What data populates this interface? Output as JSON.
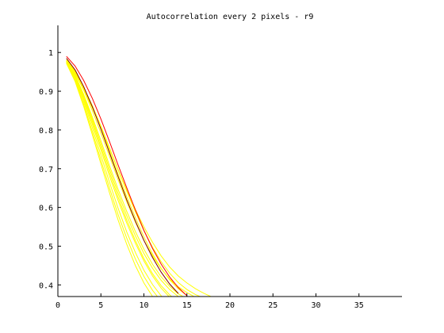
{
  "chart_data": {
    "type": "line",
    "title": "Autocorrelation every 2 pixels - r9",
    "xlabel": "",
    "ylabel": "",
    "xlim": [
      0,
      40
    ],
    "ylim": [
      0.37,
      1.07
    ],
    "xticks": [
      0,
      5,
      10,
      15,
      20,
      25,
      30,
      35
    ],
    "yticks": [
      0.4,
      0.5,
      0.6,
      0.7,
      0.8,
      0.9,
      1
    ],
    "grid": false,
    "legend": "none",
    "colors": {
      "yellow": "#ffff00",
      "red": "#ff0000",
      "dark": "#800000",
      "axis": "#000000"
    },
    "series": [
      {
        "color": "#ffff00",
        "x": [
          1,
          2,
          3,
          4,
          5,
          6,
          7,
          8,
          9,
          10,
          11,
          12,
          13,
          14,
          15,
          16,
          17,
          18
        ],
        "values": [
          0.975,
          0.945,
          0.905,
          0.858,
          0.806,
          0.752,
          0.698,
          0.645,
          0.595,
          0.55,
          0.51,
          0.475,
          0.446,
          0.423,
          0.405,
          0.39,
          0.378,
          0.368
        ]
      },
      {
        "color": "#ffff00",
        "x": [
          1,
          2,
          3,
          4,
          5,
          6,
          7,
          8,
          9,
          10,
          11,
          12,
          13,
          14,
          15,
          16,
          17
        ],
        "values": [
          0.98,
          0.95,
          0.91,
          0.863,
          0.81,
          0.754,
          0.697,
          0.642,
          0.589,
          0.54,
          0.497,
          0.46,
          0.43,
          0.406,
          0.388,
          0.375,
          0.366
        ]
      },
      {
        "color": "#ffff00",
        "x": [
          1,
          2,
          3,
          4,
          5,
          6,
          7,
          8,
          9,
          10,
          11,
          12,
          13,
          14,
          15,
          16
        ],
        "values": [
          0.98,
          0.948,
          0.903,
          0.85,
          0.792,
          0.732,
          0.672,
          0.615,
          0.562,
          0.515,
          0.475,
          0.442,
          0.415,
          0.395,
          0.38,
          0.368
        ]
      },
      {
        "color": "#ffff00",
        "x": [
          1,
          2,
          3,
          4,
          5,
          6,
          7,
          8,
          9,
          10,
          11,
          12,
          13,
          14,
          15
        ],
        "values": [
          0.978,
          0.942,
          0.892,
          0.834,
          0.772,
          0.708,
          0.647,
          0.59,
          0.538,
          0.492,
          0.453,
          0.421,
          0.396,
          0.377,
          0.364
        ]
      },
      {
        "color": "#ffff00",
        "x": [
          1,
          2,
          3,
          4,
          5,
          6,
          7,
          8,
          9,
          10,
          11,
          12,
          13,
          14
        ],
        "values": [
          0.977,
          0.938,
          0.884,
          0.822,
          0.756,
          0.69,
          0.627,
          0.568,
          0.515,
          0.468,
          0.429,
          0.398,
          0.374,
          0.356
        ]
      },
      {
        "color": "#ffff00",
        "x": [
          1,
          2,
          3,
          4,
          5,
          6,
          7,
          8,
          9,
          10,
          11,
          12,
          13
        ],
        "values": [
          0.975,
          0.932,
          0.873,
          0.806,
          0.735,
          0.665,
          0.598,
          0.537,
          0.484,
          0.438,
          0.401,
          0.372,
          0.35
        ]
      },
      {
        "color": "#ffff00",
        "x": [
          1,
          2,
          3,
          4,
          5,
          6,
          7,
          8,
          9,
          10,
          11,
          12,
          13
        ],
        "values": [
          0.976,
          0.935,
          0.879,
          0.815,
          0.748,
          0.681,
          0.618,
          0.56,
          0.508,
          0.462,
          0.423,
          0.392,
          0.368
        ]
      },
      {
        "color": "#ffff00",
        "x": [
          1,
          2,
          3,
          4,
          5,
          6,
          7,
          8,
          9,
          10,
          11,
          12
        ],
        "values": [
          0.973,
          0.928,
          0.866,
          0.796,
          0.722,
          0.65,
          0.582,
          0.521,
          0.467,
          0.422,
          0.386,
          0.358
        ]
      },
      {
        "color": "#ffff00",
        "x": [
          1,
          2,
          3,
          4,
          5,
          6,
          7,
          8,
          9,
          10,
          11,
          12
        ],
        "values": [
          0.972,
          0.925,
          0.861,
          0.788,
          0.712,
          0.638,
          0.568,
          0.505,
          0.45,
          0.405,
          0.37,
          0.344
        ]
      },
      {
        "color": "#ffff00",
        "x": [
          1,
          2,
          3,
          4,
          5,
          6,
          7,
          8,
          9,
          10,
          11,
          12,
          13,
          14
        ],
        "values": [
          0.978,
          0.94,
          0.888,
          0.828,
          0.764,
          0.699,
          0.637,
          0.579,
          0.527,
          0.481,
          0.443,
          0.412,
          0.388,
          0.37
        ]
      },
      {
        "color": "#ffff00",
        "x": [
          1,
          2,
          3,
          4,
          5,
          6,
          7,
          8,
          9,
          10,
          11,
          12,
          13,
          14,
          15
        ],
        "values": [
          0.982,
          0.952,
          0.91,
          0.86,
          0.804,
          0.745,
          0.686,
          0.628,
          0.574,
          0.524,
          0.48,
          0.443,
          0.413,
          0.39,
          0.372
        ]
      },
      {
        "color": "#ff0000",
        "x": [
          1,
          2,
          3,
          4,
          5,
          6,
          7,
          8,
          9,
          10,
          11,
          12,
          13,
          14,
          15
        ],
        "values": [
          0.99,
          0.965,
          0.928,
          0.882,
          0.828,
          0.77,
          0.71,
          0.651,
          0.594,
          0.541,
          0.494,
          0.454,
          0.42,
          0.393,
          0.372
        ]
      },
      {
        "color": "#800000",
        "x": [
          1,
          2,
          3,
          4,
          5,
          6,
          7,
          8,
          9,
          10,
          11,
          12,
          13,
          14
        ],
        "values": [
          0.985,
          0.955,
          0.912,
          0.86,
          0.802,
          0.741,
          0.68,
          0.62,
          0.565,
          0.515,
          0.471,
          0.433,
          0.402,
          0.378
        ]
      }
    ]
  }
}
